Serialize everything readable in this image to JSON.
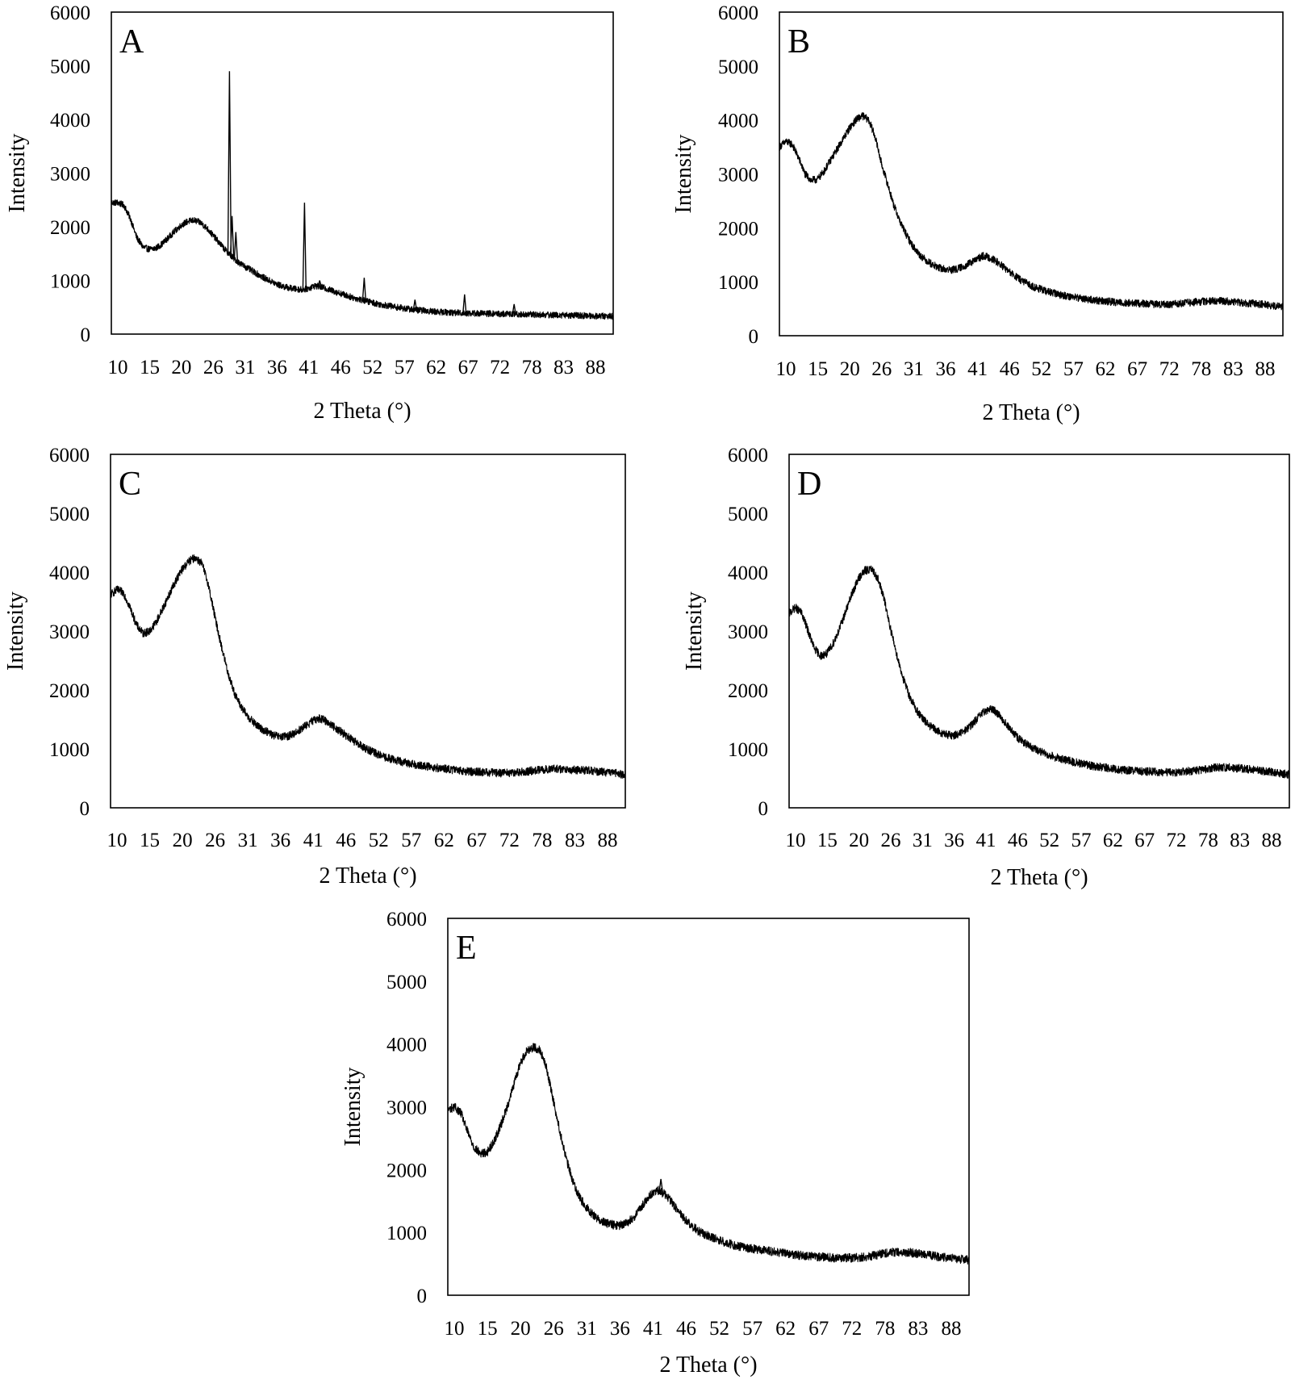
{
  "chart_data": [
    {
      "type": "line",
      "panel_label": "A",
      "xlabel": "2 Theta (°)",
      "ylabel": "Intensity",
      "xlim": [
        10,
        89
      ],
      "ylim": [
        0,
        6000
      ],
      "xticks": [
        "10",
        "15",
        "20",
        "26",
        "31",
        "36",
        "41",
        "46",
        "52",
        "57",
        "62",
        "67",
        "72",
        "78",
        "83",
        "88"
      ],
      "yticks": [
        "0",
        "1000",
        "2000",
        "3000",
        "4000",
        "5000",
        "6000"
      ],
      "grid": false,
      "noise": 60,
      "series": [
        {
          "name": "A",
          "x": [
            10,
            11,
            12,
            13,
            14,
            15,
            16,
            17,
            18,
            19,
            20,
            21,
            22,
            23,
            24,
            25,
            26,
            27,
            28,
            29,
            30,
            31,
            32,
            33,
            34,
            35,
            36,
            37,
            38,
            39,
            40,
            41,
            42,
            43,
            44,
            45,
            46,
            47,
            48,
            49,
            50,
            52,
            54,
            56,
            58,
            60,
            62,
            64,
            66,
            68,
            70,
            72,
            74,
            76,
            78,
            80,
            82,
            84,
            86,
            88,
            89
          ],
          "y": [
            2450,
            2450,
            2400,
            2150,
            1800,
            1620,
            1580,
            1600,
            1680,
            1800,
            1920,
            2030,
            2100,
            2120,
            2080,
            1980,
            1840,
            1700,
            1560,
            1440,
            1340,
            1260,
            1190,
            1120,
            1050,
            990,
            930,
            890,
            860,
            840,
            830,
            850,
            900,
            880,
            840,
            800,
            760,
            720,
            680,
            650,
            620,
            560,
            520,
            480,
            450,
            430,
            410,
            400,
            390,
            385,
            380,
            375,
            370,
            365,
            360,
            355,
            350,
            345,
            340,
            335,
            330
          ]
        }
      ],
      "peaks": [
        {
          "x": 28.6,
          "y": 4900
        },
        {
          "x": 29.0,
          "y": 2200
        },
        {
          "x": 29.6,
          "y": 1900
        },
        {
          "x": 40.4,
          "y": 2450
        },
        {
          "x": 42.8,
          "y": 1000
        },
        {
          "x": 49.8,
          "y": 1050
        },
        {
          "x": 57.8,
          "y": 640
        },
        {
          "x": 65.6,
          "y": 740
        },
        {
          "x": 73.4,
          "y": 560
        }
      ]
    },
    {
      "type": "line",
      "panel_label": "B",
      "xlabel": "2 Theta (°)",
      "ylabel": "Intensity",
      "xlim": [
        10,
        89
      ],
      "ylim": [
        0,
        6000
      ],
      "xticks": [
        "10",
        "15",
        "20",
        "26",
        "31",
        "36",
        "41",
        "46",
        "52",
        "57",
        "62",
        "67",
        "72",
        "78",
        "83",
        "88"
      ],
      "yticks": [
        "0",
        "1000",
        "2000",
        "3000",
        "4000",
        "5000",
        "6000"
      ],
      "grid": false,
      "noise": 70,
      "series": [
        {
          "name": "B",
          "x": [
            10,
            11,
            12,
            13,
            14,
            15,
            16,
            17,
            18,
            19,
            20,
            21,
            22,
            23,
            24,
            25,
            26,
            27,
            28,
            29,
            30,
            31,
            32,
            33,
            34,
            35,
            36,
            37,
            38,
            39,
            40,
            41,
            42,
            43,
            44,
            45,
            46,
            47,
            48,
            50,
            52,
            54,
            56,
            58,
            60,
            62,
            64,
            66,
            68,
            70,
            72,
            74,
            76,
            78,
            80,
            82,
            84,
            86,
            88,
            89
          ],
          "y": [
            3500,
            3600,
            3550,
            3300,
            3000,
            2880,
            2900,
            3050,
            3250,
            3450,
            3650,
            3850,
            4000,
            4080,
            4000,
            3700,
            3200,
            2800,
            2400,
            2100,
            1850,
            1650,
            1500,
            1400,
            1320,
            1260,
            1230,
            1220,
            1240,
            1290,
            1350,
            1420,
            1480,
            1450,
            1380,
            1290,
            1190,
            1100,
            1020,
            900,
            820,
            760,
            720,
            680,
            650,
            630,
            610,
            600,
            590,
            580,
            590,
            610,
            630,
            650,
            640,
            620,
            600,
            580,
            550,
            540
          ]
        }
      ],
      "peaks": []
    },
    {
      "type": "line",
      "panel_label": "C",
      "xlabel": "2 Theta (°)",
      "ylabel": "Intensity",
      "xlim": [
        10,
        89
      ],
      "ylim": [
        0,
        6000
      ],
      "xticks": [
        "10",
        "15",
        "20",
        "26",
        "31",
        "36",
        "41",
        "46",
        "52",
        "57",
        "62",
        "67",
        "72",
        "78",
        "83",
        "88"
      ],
      "yticks": [
        "0",
        "1000",
        "2000",
        "3000",
        "4000",
        "5000",
        "6000"
      ],
      "grid": false,
      "noise": 70,
      "series": [
        {
          "name": "C",
          "x": [
            10,
            11,
            12,
            13,
            14,
            15,
            16,
            17,
            18,
            19,
            20,
            21,
            22,
            23,
            24,
            25,
            26,
            27,
            28,
            29,
            30,
            31,
            32,
            33,
            34,
            35,
            36,
            37,
            38,
            39,
            40,
            41,
            42,
            43,
            44,
            45,
            46,
            47,
            48,
            50,
            52,
            54,
            56,
            58,
            60,
            62,
            64,
            66,
            68,
            70,
            72,
            74,
            76,
            78,
            80,
            82,
            84,
            86,
            88,
            89
          ],
          "y": [
            3620,
            3700,
            3650,
            3400,
            3100,
            2960,
            3000,
            3150,
            3380,
            3620,
            3850,
            4050,
            4180,
            4250,
            4150,
            3800,
            3250,
            2750,
            2300,
            1950,
            1720,
            1560,
            1440,
            1350,
            1290,
            1230,
            1200,
            1210,
            1250,
            1320,
            1400,
            1470,
            1520,
            1480,
            1400,
            1320,
            1240,
            1160,
            1080,
            960,
            860,
            800,
            750,
            710,
            680,
            650,
            630,
            610,
            600,
            590,
            600,
            620,
            650,
            660,
            650,
            640,
            630,
            600,
            580,
            560
          ]
        }
      ],
      "peaks": []
    },
    {
      "type": "line",
      "panel_label": "D",
      "xlabel": "2 Theta (°)",
      "ylabel": "Intensity",
      "xlim": [
        10,
        89
      ],
      "ylim": [
        0,
        6000
      ],
      "xticks": [
        "10",
        "15",
        "20",
        "26",
        "31",
        "36",
        "41",
        "46",
        "52",
        "57",
        "62",
        "67",
        "72",
        "78",
        "83",
        "88"
      ],
      "yticks": [
        "0",
        "1000",
        "2000",
        "3000",
        "4000",
        "5000",
        "6000"
      ],
      "grid": false,
      "noise": 70,
      "series": [
        {
          "name": "D",
          "x": [
            10,
            11,
            12,
            13,
            14,
            15,
            16,
            17,
            18,
            19,
            20,
            21,
            22,
            23,
            24,
            25,
            26,
            27,
            28,
            29,
            30,
            31,
            32,
            33,
            34,
            35,
            36,
            37,
            38,
            39,
            40,
            41,
            42,
            43,
            44,
            45,
            46,
            47,
            48,
            50,
            52,
            54,
            56,
            58,
            60,
            62,
            64,
            66,
            68,
            70,
            72,
            74,
            76,
            78,
            80,
            82,
            84,
            86,
            88,
            89
          ],
          "y": [
            3300,
            3400,
            3300,
            3000,
            2700,
            2580,
            2620,
            2800,
            3050,
            3350,
            3650,
            3900,
            4030,
            4050,
            3900,
            3550,
            3050,
            2600,
            2200,
            1900,
            1680,
            1520,
            1410,
            1330,
            1270,
            1240,
            1230,
            1260,
            1330,
            1430,
            1550,
            1650,
            1680,
            1600,
            1460,
            1320,
            1200,
            1110,
            1040,
            940,
            860,
            800,
            750,
            710,
            680,
            650,
            630,
            620,
            610,
            600,
            610,
            630,
            660,
            690,
            680,
            660,
            640,
            610,
            580,
            560
          ]
        }
      ],
      "peaks": []
    },
    {
      "type": "line",
      "panel_label": "E",
      "xlabel": "2 Theta (°)",
      "ylabel": "Intensity",
      "xlim": [
        10,
        89
      ],
      "ylim": [
        0,
        6000
      ],
      "xticks": [
        "10",
        "15",
        "20",
        "26",
        "31",
        "36",
        "41",
        "46",
        "52",
        "57",
        "62",
        "67",
        "72",
        "78",
        "83",
        "88"
      ],
      "yticks": [
        "0",
        "1000",
        "2000",
        "3000",
        "4000",
        "5000",
        "6000"
      ],
      "grid": false,
      "noise": 70,
      "series": [
        {
          "name": "E",
          "x": [
            10,
            11,
            12,
            13,
            14,
            15,
            16,
            17,
            18,
            19,
            20,
            21,
            22,
            23,
            24,
            25,
            26,
            27,
            28,
            29,
            30,
            31,
            32,
            33,
            34,
            35,
            36,
            37,
            38,
            39,
            40,
            41,
            42,
            43,
            44,
            45,
            46,
            47,
            48,
            50,
            52,
            54,
            56,
            58,
            60,
            62,
            64,
            66,
            68,
            70,
            72,
            74,
            76,
            78,
            80,
            82,
            84,
            86,
            88,
            89
          ],
          "y": [
            2950,
            3000,
            2900,
            2600,
            2350,
            2250,
            2280,
            2450,
            2700,
            3000,
            3350,
            3700,
            3900,
            3950,
            3900,
            3600,
            3100,
            2600,
            2150,
            1800,
            1550,
            1400,
            1280,
            1200,
            1150,
            1120,
            1110,
            1140,
            1220,
            1350,
            1500,
            1630,
            1670,
            1600,
            1470,
            1330,
            1200,
            1100,
            1020,
            920,
            840,
            780,
            740,
            710,
            680,
            650,
            630,
            610,
            600,
            590,
            600,
            620,
            660,
            690,
            680,
            650,
            620,
            590,
            570,
            560
          ]
        }
      ],
      "peaks": [
        {
          "x": 42.3,
          "y": 1850
        }
      ]
    }
  ]
}
